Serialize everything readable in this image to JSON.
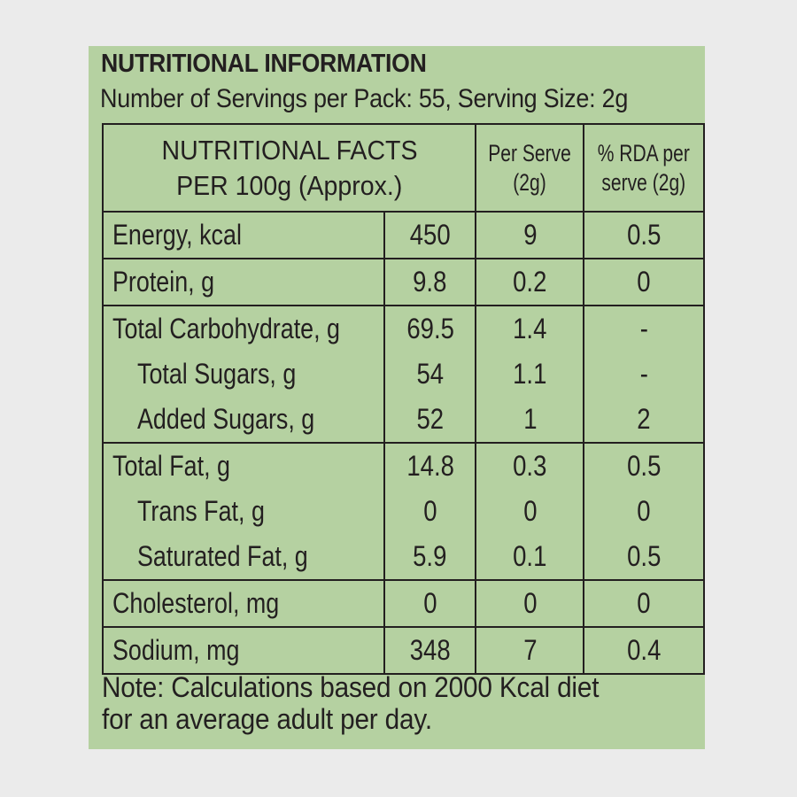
{
  "title": "NUTRITIONAL INFORMATION",
  "servings": "Number of Servings per Pack: 55, Serving Size: 2g",
  "header": {
    "main_line1": "NUTRITIONAL FACTS",
    "main_line2": "PER 100g (Approx.)",
    "per_serve_line1": "Per Serve",
    "per_serve_line2": "(2g)",
    "rda_line1": "% RDA per",
    "rda_line2": "serve (2g)"
  },
  "groups": [
    {
      "rows": [
        {
          "name": "Energy, kcal",
          "per100": "450",
          "serve": "9",
          "rda": "0.5"
        }
      ]
    },
    {
      "rows": [
        {
          "name": "Protein, g",
          "per100": "9.8",
          "serve": "0.2",
          "rda": "0"
        }
      ]
    },
    {
      "rows": [
        {
          "name": "Total Carbohydrate, g",
          "per100": "69.5",
          "serve": "1.4",
          "rda": "-"
        },
        {
          "name": "Total Sugars, g",
          "per100": "54",
          "serve": "1.1",
          "rda": "-"
        },
        {
          "name": "Added Sugars, g",
          "per100": "52",
          "serve": "1",
          "rda": "2"
        }
      ]
    },
    {
      "rows": [
        {
          "name": "Total Fat, g",
          "per100": "14.8",
          "serve": "0.3",
          "rda": "0.5"
        },
        {
          "name": "Trans Fat, g",
          "per100": "0",
          "serve": "0",
          "rda": "0"
        },
        {
          "name": "Saturated Fat, g",
          "per100": "5.9",
          "serve": "0.1",
          "rda": "0.5"
        }
      ]
    },
    {
      "rows": [
        {
          "name": "Cholesterol, mg",
          "per100": "0",
          "serve": "0",
          "rda": "0"
        }
      ]
    },
    {
      "rows": [
        {
          "name": "Sodium, mg",
          "per100": "348",
          "serve": "7",
          "rda": "0.4"
        }
      ]
    }
  ],
  "note_line1": "Note: Calculations based on 2000 Kcal diet",
  "note_line2": "for an average adult per day."
}
